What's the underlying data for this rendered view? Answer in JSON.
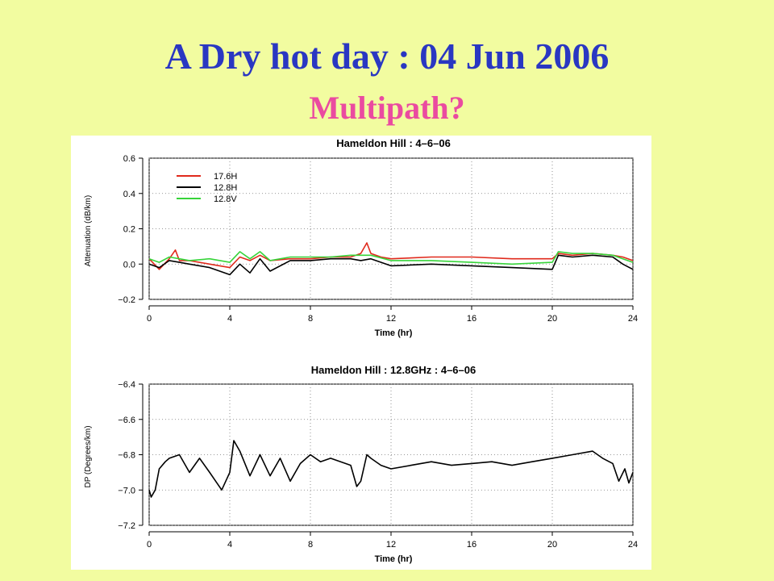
{
  "slide": {
    "title": "A Dry hot day : 04 Jun 2006",
    "subtitle": "Multipath?"
  },
  "chart_data": [
    {
      "type": "line",
      "title": "Hameldon Hill : 4–6–06",
      "xlabel": "Time (hr)",
      "ylabel": "Attenuation (dB/km)",
      "xlim": [
        0,
        24
      ],
      "ylim": [
        -0.2,
        0.6
      ],
      "xticks": [
        "0",
        "4",
        "8",
        "12",
        "16",
        "20",
        "24"
      ],
      "yticks": [
        "−0.2",
        "0.0",
        "0.2",
        "0.4",
        "0.6"
      ],
      "grid": true,
      "legend_position": "top-left",
      "series": [
        {
          "name": "17.6H",
          "color": "#e02a1c",
          "x": [
            0,
            0.5,
            1,
            1.3,
            1.5,
            2,
            3,
            4,
            4.5,
            5,
            5.5,
            6,
            7,
            8,
            9,
            10,
            10.5,
            10.8,
            11,
            11.5,
            12,
            14,
            16,
            18,
            20,
            20.3,
            21,
            22,
            23,
            23.5,
            24
          ],
          "y": [
            0.03,
            -0.03,
            0.03,
            0.08,
            0.02,
            0.02,
            0.0,
            -0.02,
            0.04,
            0.02,
            0.05,
            0.02,
            0.03,
            0.03,
            0.04,
            0.04,
            0.06,
            0.12,
            0.06,
            0.04,
            0.03,
            0.04,
            0.04,
            0.03,
            0.03,
            0.06,
            0.05,
            0.06,
            0.05,
            0.04,
            0.02
          ]
        },
        {
          "name": "12.8H",
          "color": "#000000",
          "x": [
            0,
            0.5,
            1,
            1.5,
            2,
            3,
            4,
            4.5,
            5,
            5.5,
            6,
            7,
            8,
            9,
            10,
            10.5,
            11,
            12,
            14,
            16,
            18,
            20,
            20.3,
            21,
            22,
            23,
            23.5,
            24
          ],
          "y": [
            0.0,
            -0.02,
            0.02,
            0.01,
            0.0,
            -0.02,
            -0.06,
            0.0,
            -0.05,
            0.03,
            -0.04,
            0.02,
            0.02,
            0.03,
            0.03,
            0.02,
            0.03,
            -0.01,
            0.0,
            -0.01,
            -0.02,
            -0.03,
            0.05,
            0.04,
            0.05,
            0.04,
            0.0,
            -0.03
          ]
        },
        {
          "name": "12.8V",
          "color": "#37d43a",
          "x": [
            0,
            0.5,
            1,
            1.5,
            2,
            3,
            4,
            4.5,
            5,
            5.5,
            6,
            7,
            8,
            9,
            10,
            10.5,
            11,
            12,
            14,
            16,
            18,
            20,
            20.3,
            21,
            22,
            23,
            23.5,
            24
          ],
          "y": [
            0.03,
            0.01,
            0.04,
            0.03,
            0.02,
            0.03,
            0.01,
            0.07,
            0.03,
            0.07,
            0.02,
            0.04,
            0.04,
            0.04,
            0.05,
            0.05,
            0.05,
            0.02,
            0.02,
            0.01,
            0.0,
            0.01,
            0.07,
            0.06,
            0.06,
            0.05,
            0.03,
            0.01
          ]
        }
      ]
    },
    {
      "type": "line",
      "title": "Hameldon Hill : 12.8GHz : 4–6–06",
      "xlabel": "Time (hr)",
      "ylabel": "DP (Degrees/km)",
      "xlim": [
        0,
        24
      ],
      "ylim": [
        -7.2,
        -6.4
      ],
      "xticks": [
        "0",
        "4",
        "8",
        "12",
        "16",
        "20",
        "24"
      ],
      "yticks": [
        "−7.2",
        "−7.0",
        "−6.8",
        "−6.6",
        "−6.4"
      ],
      "grid": true,
      "series": [
        {
          "color": "#000000",
          "x": [
            0,
            0.1,
            0.3,
            0.5,
            0.8,
            1,
            1.5,
            2,
            2.5,
            3,
            3.3,
            3.6,
            4,
            4.2,
            4.5,
            5,
            5.5,
            6,
            6.5,
            7,
            7.5,
            8,
            8.5,
            9,
            9.5,
            10,
            10.3,
            10.5,
            10.8,
            11,
            11.5,
            12,
            13,
            14,
            15,
            16,
            17,
            18,
            19,
            20,
            21,
            22,
            22.5,
            23,
            23.3,
            23.6,
            23.8,
            24
          ],
          "y": [
            -7.0,
            -7.04,
            -7.0,
            -6.88,
            -6.84,
            -6.82,
            -6.8,
            -6.9,
            -6.82,
            -6.9,
            -6.95,
            -7.0,
            -6.9,
            -6.72,
            -6.78,
            -6.92,
            -6.8,
            -6.92,
            -6.82,
            -6.95,
            -6.85,
            -6.8,
            -6.84,
            -6.82,
            -6.84,
            -6.86,
            -6.98,
            -6.95,
            -6.8,
            -6.82,
            -6.86,
            -6.88,
            -6.86,
            -6.84,
            -6.86,
            -6.85,
            -6.84,
            -6.86,
            -6.84,
            -6.82,
            -6.8,
            -6.78,
            -6.82,
            -6.85,
            -6.95,
            -6.88,
            -6.96,
            -6.9
          ]
        }
      ]
    }
  ]
}
